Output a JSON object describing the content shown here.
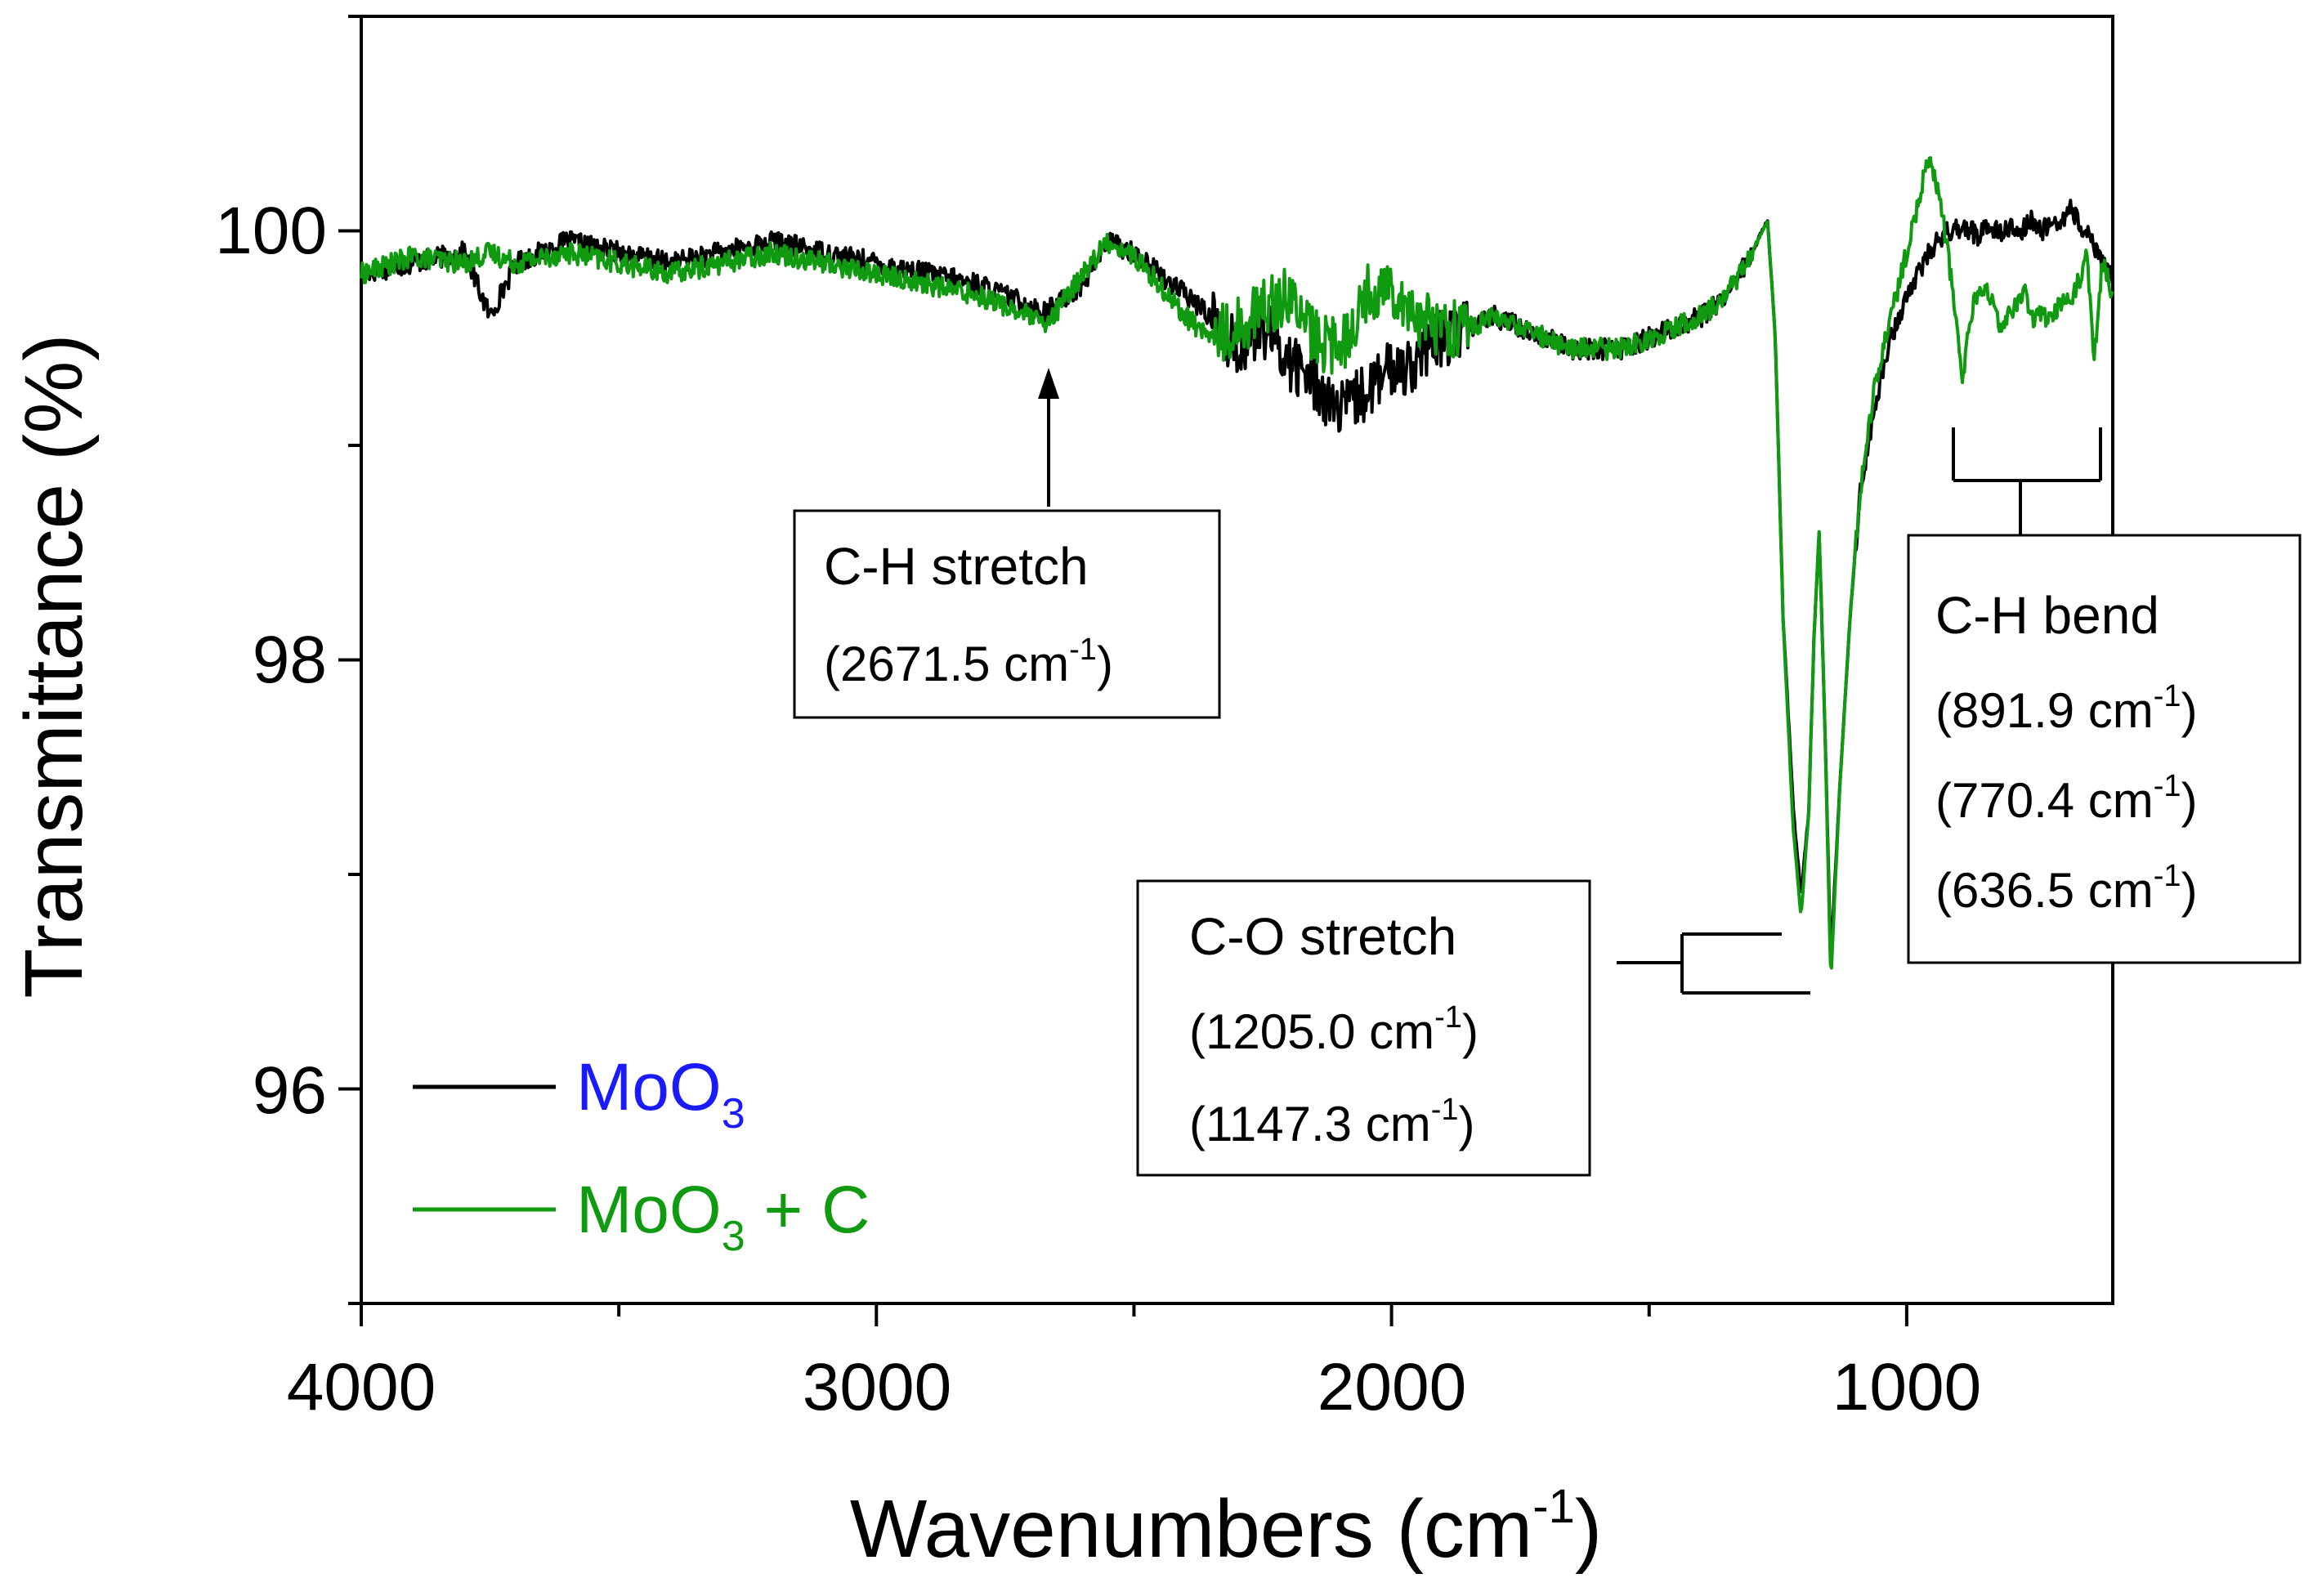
{
  "chart_data": {
    "type": "line",
    "title": "",
    "xlabel": "Wavenumbers (cm",
    "xlabel_sup": "-1",
    "xlabel_close": ")",
    "ylabel": "Transmittance (%)",
    "xlim": [
      4000,
      600
    ],
    "xlim_note": "x axis is reversed (4000 on the left, ~600 on the right)",
    "ylim": [
      95,
      101
    ],
    "x_ticks": [
      4000,
      3000,
      2000,
      1000
    ],
    "x_tick_labels": [
      "4000",
      "3000",
      "2000",
      "1000"
    ],
    "y_ticks": [
      96,
      98,
      100
    ],
    "y_tick_labels": [
      "96",
      "98",
      "100"
    ],
    "grid": false,
    "legend_position": "bottom-left",
    "series": [
      {
        "name": "MoO3",
        "label_main": "MoO",
        "label_sub": "3",
        "label_suffix": "",
        "color": "#000000",
        "label_color": "#1a1aff",
        "x": [
          4000,
          3900,
          3800,
          3750,
          3700,
          3600,
          3500,
          3400,
          3300,
          3200,
          3100,
          3000,
          2900,
          2800,
          2700,
          2671.5,
          2600,
          2550,
          2500,
          2450,
          2400,
          2350,
          2300,
          2250,
          2200,
          2150,
          2100,
          2050,
          2000,
          1950,
          1900,
          1850,
          1800,
          1750,
          1700,
          1650,
          1600,
          1550,
          1500,
          1450,
          1400,
          1350,
          1300,
          1270,
          1255,
          1240,
          1220,
          1205,
          1190,
          1180,
          1170,
          1160,
          1147.3,
          1130,
          1110,
          1090,
          1060,
          1030,
          1000,
          980,
          960,
          940,
          920,
          900,
          880,
          860,
          840,
          820,
          800,
          780,
          760,
          740,
          720,
          700,
          680,
          660,
          640,
          620,
          600
        ],
        "y": [
          99.8,
          99.85,
          99.9,
          99.6,
          99.85,
          99.95,
          99.9,
          99.85,
          99.9,
          99.95,
          99.9,
          99.85,
          99.8,
          99.75,
          99.65,
          99.62,
          99.75,
          99.95,
          99.9,
          99.8,
          99.7,
          99.6,
          99.45,
          99.55,
          99.4,
          99.3,
          99.15,
          99.25,
          99.35,
          99.4,
          99.5,
          99.55,
          99.6,
          99.55,
          99.5,
          99.45,
          99.45,
          99.45,
          99.5,
          99.55,
          99.6,
          99.7,
          99.9,
          100.05,
          99.5,
          98.2,
          97.3,
          96.9,
          97.3,
          98.1,
          98.6,
          97.8,
          96.6,
          97.4,
          98.2,
          98.8,
          99.2,
          99.5,
          99.7,
          99.8,
          99.88,
          99.95,
          100.0,
          100.02,
          100.0,
          99.98,
          100.03,
          100.0,
          100.02,
          99.98,
          100.05,
          100.0,
          100.03,
          100.05,
          100.1,
          100.0,
          99.95,
          99.85,
          99.8
        ]
      },
      {
        "name": "MoO3 + C",
        "label_main": "MoO",
        "label_sub": "3",
        "label_suffix": " + C",
        "color": "#109a10",
        "label_color": "#109a10",
        "x": [
          4000,
          3900,
          3800,
          3750,
          3700,
          3600,
          3500,
          3400,
          3300,
          3200,
          3100,
          3000,
          2900,
          2800,
          2700,
          2671.5,
          2600,
          2550,
          2500,
          2450,
          2400,
          2350,
          2300,
          2250,
          2200,
          2150,
          2100,
          2050,
          2000,
          1950,
          1900,
          1850,
          1800,
          1750,
          1700,
          1650,
          1600,
          1550,
          1500,
          1450,
          1400,
          1350,
          1300,
          1270,
          1255,
          1240,
          1220,
          1205,
          1190,
          1180,
          1170,
          1160,
          1147.3,
          1130,
          1110,
          1090,
          1060,
          1030,
          1000,
          980,
          960,
          940,
          920,
          900,
          891.9,
          880,
          860,
          840,
          820,
          800,
          780,
          770.4,
          760,
          740,
          720,
          700,
          680,
          660,
          650,
          636.5,
          620,
          600
        ],
        "y": [
          99.8,
          99.88,
          99.85,
          99.9,
          99.85,
          99.9,
          99.85,
          99.8,
          99.85,
          99.9,
          99.85,
          99.8,
          99.75,
          99.7,
          99.6,
          99.55,
          99.8,
          99.95,
          99.88,
          99.75,
          99.6,
          99.5,
          99.55,
          99.65,
          99.7,
          99.5,
          99.45,
          99.7,
          99.75,
          99.6,
          99.55,
          99.55,
          99.6,
          99.55,
          99.5,
          99.45,
          99.45,
          99.45,
          99.5,
          99.55,
          99.6,
          99.7,
          99.9,
          100.05,
          99.5,
          98.2,
          97.2,
          96.8,
          97.3,
          98.1,
          98.6,
          97.8,
          96.5,
          97.4,
          98.2,
          98.8,
          99.3,
          99.6,
          99.9,
          100.1,
          100.35,
          100.2,
          99.9,
          99.5,
          99.25,
          99.55,
          99.75,
          99.7,
          99.55,
          99.6,
          99.7,
          99.72,
          99.6,
          99.6,
          99.6,
          99.65,
          99.7,
          99.8,
          99.9,
          99.4,
          99.85,
          99.7
        ]
      }
    ],
    "annotations": [
      {
        "id": "ch-stretch",
        "title": "C-H stretch",
        "lines": [
          {
            "value": "(2671.5 cm",
            "sup": "-1",
            "close": ")"
          }
        ]
      },
      {
        "id": "co-stretch",
        "title": "C-O stretch",
        "lines": [
          {
            "value": "(1205.0 cm",
            "sup": "-1",
            "close": ")"
          },
          {
            "value": "(1147.3 cm",
            "sup": "-1",
            "close": ")"
          }
        ]
      },
      {
        "id": "ch-bend",
        "title": "C-H bend",
        "lines": [
          {
            "value": "(891.9 cm",
            "sup": "-1",
            "close": ")"
          },
          {
            "value": "(770.4 cm",
            "sup": "-1",
            "close": ")"
          },
          {
            "value": "(636.5 cm",
            "sup": "-1",
            "close": ")"
          }
        ]
      }
    ]
  }
}
